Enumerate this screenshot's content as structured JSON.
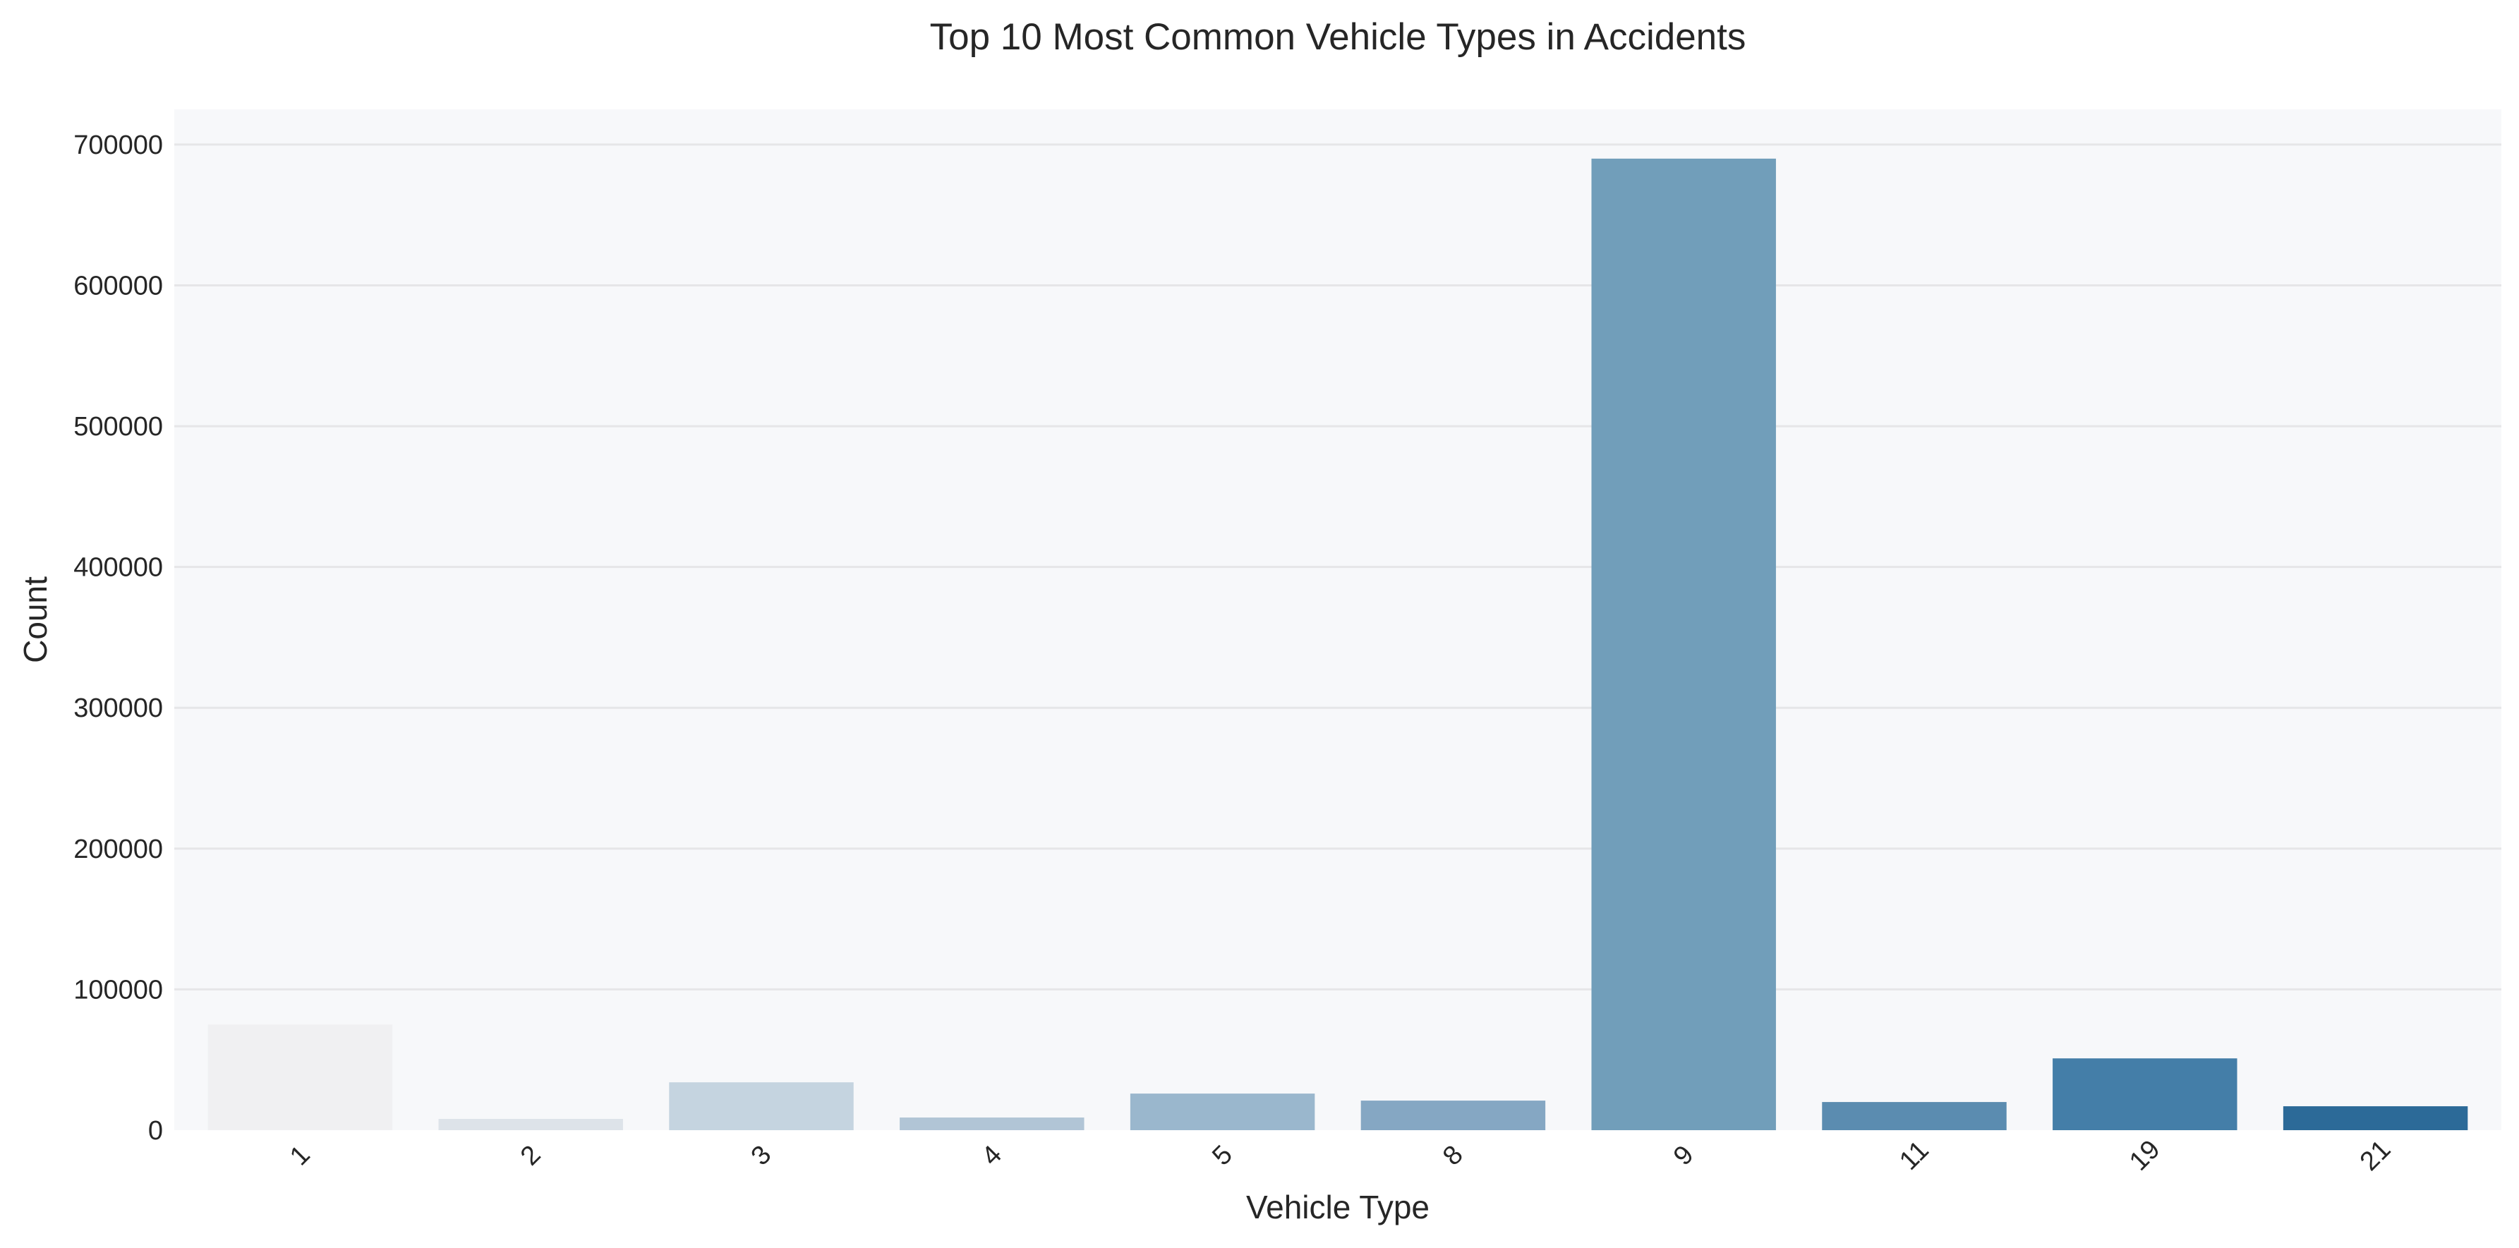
{
  "chart_data": {
    "type": "bar",
    "title": "Top 10 Most Common Vehicle Types in Accidents",
    "xlabel": "Vehicle Type",
    "ylabel": "Count",
    "categories": [
      "1",
      "2",
      "3",
      "4",
      "5",
      "8",
      "9",
      "11",
      "19",
      "21"
    ],
    "values": [
      75000,
      8000,
      34000,
      9000,
      26000,
      21000,
      690000,
      20000,
      51000,
      17000
    ],
    "ylim": [
      0,
      725000
    ],
    "yticks": [
      0,
      100000,
      200000,
      300000,
      400000,
      500000,
      600000,
      700000
    ],
    "ytick_labels": [
      "0",
      "100000",
      "200000",
      "300000",
      "400000",
      "500000",
      "600000",
      "700000"
    ],
    "xtick_rotation": -45,
    "grid": "horizontal",
    "legend": "none",
    "colors": [
      "#f0f0f2",
      "#dde3e9",
      "#c5d4e0",
      "#b1c5d6",
      "#9ab7cd",
      "#85a7c3",
      "#719eba",
      "#5b8cb0",
      "#447ea8",
      "#2c6a98"
    ],
    "plot_background": "#f7f8fa",
    "grid_color": "#e6e6e8"
  }
}
